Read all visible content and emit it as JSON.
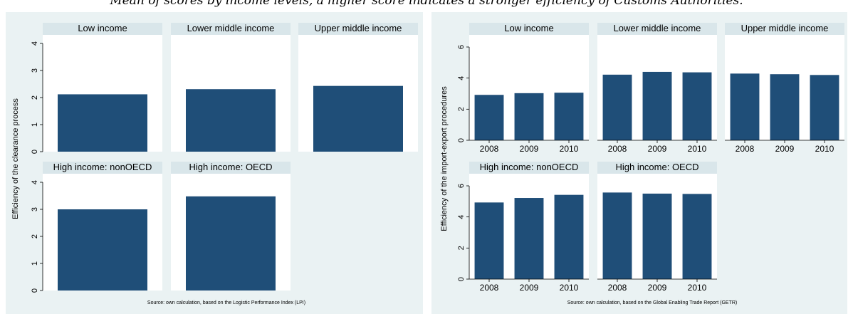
{
  "caption": "Mean of scores by income levels, a higher score indicates a stronger efficiency of Customs Authorities.",
  "colors": {
    "bar": "#1f4e78",
    "panel_bg": "#eaf2f3",
    "strip_bg": "#d9e6ea",
    "plot_bg": "#ffffff"
  },
  "chart_data": [
    {
      "type": "bar",
      "ylabel": "Efficiency of the clearance process",
      "source": "Source: own calculation, based on the Logistic Performance Index (LPI)",
      "ylim": [
        0,
        4
      ],
      "yticks": [
        "0",
        "1",
        "2",
        "3",
        "4"
      ],
      "grid": false,
      "panels": [
        {
          "title": "Low income",
          "values": [
            2.12
          ]
        },
        {
          "title": "Lower middle income",
          "values": [
            2.31
          ]
        },
        {
          "title": "Upper middle income",
          "values": [
            2.43
          ]
        },
        {
          "title": "High income: nonOECD",
          "values": [
            3.0
          ]
        },
        {
          "title": "High income: OECD",
          "values": [
            3.48
          ]
        }
      ]
    },
    {
      "type": "bar",
      "ylabel": "Efficiency of the import-export procedures",
      "source": "Source: own calculation, based on the Global Enabling Trade Report (GETR)",
      "ylim": [
        0,
        6
      ],
      "yticks": [
        "0",
        "2",
        "4",
        "6"
      ],
      "categories": [
        "2008",
        "2009",
        "2010"
      ],
      "grid": false,
      "panels": [
        {
          "title": "Low income",
          "values": [
            2.92,
            3.03,
            3.06
          ]
        },
        {
          "title": "Lower middle income",
          "values": [
            4.22,
            4.4,
            4.37
          ]
        },
        {
          "title": "Upper middle income",
          "values": [
            4.29,
            4.25,
            4.2
          ]
        },
        {
          "title": "High income: nonOECD",
          "values": [
            4.93,
            5.22,
            5.42
          ]
        },
        {
          "title": "High income: OECD",
          "values": [
            5.57,
            5.5,
            5.48
          ]
        }
      ]
    }
  ]
}
